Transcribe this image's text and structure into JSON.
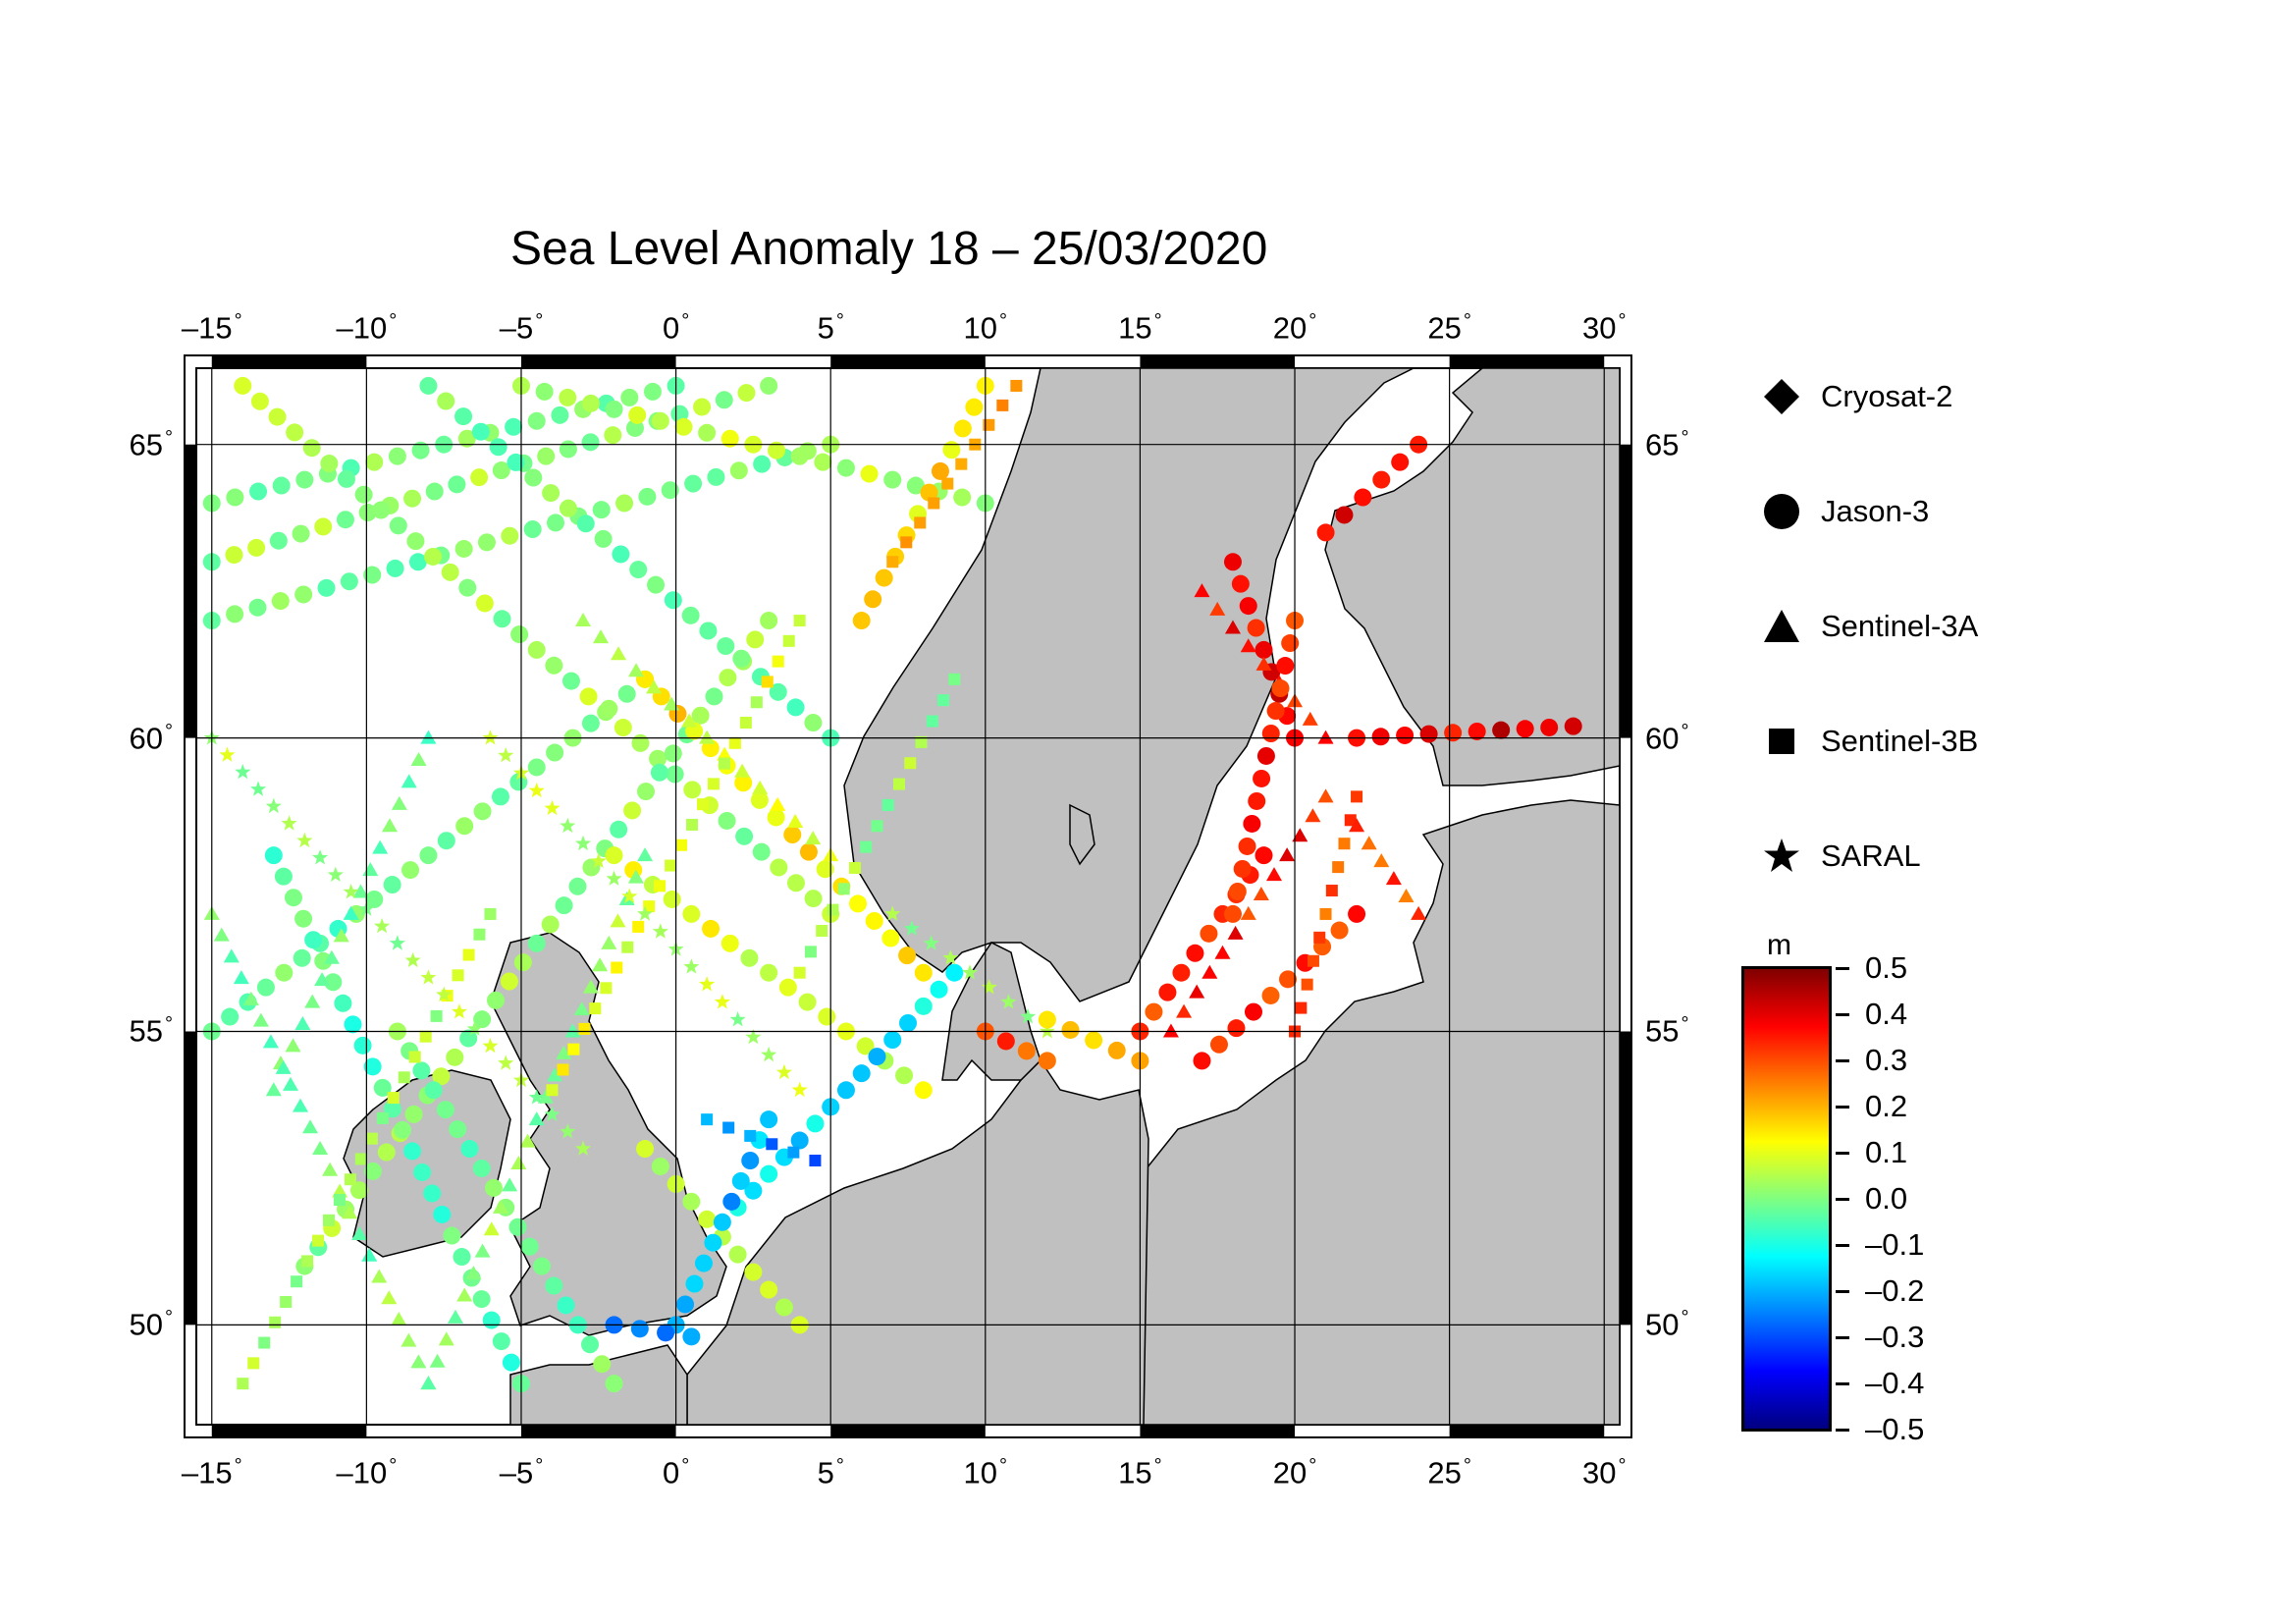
{
  "title": "Sea Level Anomaly 18 – 25/03/2020",
  "map": {
    "lon_range": [
      -15.5,
      30.5
    ],
    "lat_range": [
      48.3,
      66.3
    ],
    "lon_ticks": [
      {
        "value": -15,
        "label": "–15"
      },
      {
        "value": -10,
        "label": "–10"
      },
      {
        "value": -5,
        "label": "–5"
      },
      {
        "value": 0,
        "label": "0"
      },
      {
        "value": 5,
        "label": "5"
      },
      {
        "value": 10,
        "label": "10"
      },
      {
        "value": 15,
        "label": "15"
      },
      {
        "value": 20,
        "label": "20"
      },
      {
        "value": 25,
        "label": "25"
      },
      {
        "value": 30,
        "label": "30"
      }
    ],
    "lat_ticks": [
      {
        "value": 50,
        "label": "50"
      },
      {
        "value": 55,
        "label": "55"
      },
      {
        "value": 60,
        "label": "60"
      },
      {
        "value": 65,
        "label": "65"
      }
    ],
    "land_color": "#c0c0c0",
    "sea_color": "#ffffff",
    "grid": true
  },
  "legend": {
    "items": [
      {
        "label": "Cryosat-2",
        "symbol": "diamond"
      },
      {
        "label": "Jason-3",
        "symbol": "circle"
      },
      {
        "label": "Sentinel-3A",
        "symbol": "triangle"
      },
      {
        "label": "Sentinel-3B",
        "symbol": "square"
      },
      {
        "label": "SARAL",
        "symbol": "star"
      }
    ]
  },
  "colorbar": {
    "unit": "m",
    "min": -0.5,
    "max": 0.5,
    "ticks": [
      "0.5",
      "0.4",
      "0.3",
      "0.2",
      "0.1",
      "0.0",
      "–0.1",
      "–0.2",
      "–0.3",
      "–0.4",
      "–0.5"
    ],
    "colors": [
      "#800000",
      "#ff0000",
      "#ff8000",
      "#ffff00",
      "#80ff80",
      "#00ffff",
      "#0080ff",
      "#0000ff",
      "#000080"
    ]
  },
  "tracks": [
    {
      "sat": "circle",
      "from": [
        -15,
        64
      ],
      "to": [
        0,
        66
      ],
      "value": 0.0
    },
    {
      "sat": "circle",
      "from": [
        -15,
        63
      ],
      "to": [
        3,
        66
      ],
      "value": 0.02
    },
    {
      "sat": "circle",
      "from": [
        -15,
        62
      ],
      "to": [
        5,
        65
      ],
      "value": 0.0
    },
    {
      "sat": "circle",
      "from": [
        -14,
        66
      ],
      "to": [
        5,
        57
      ],
      "value": 0.03
    },
    {
      "sat": "circle",
      "from": [
        -8,
        66
      ],
      "to": [
        5,
        60
      ],
      "value": 0.0
    },
    {
      "sat": "circle",
      "from": [
        -5,
        66
      ],
      "to": [
        10,
        64
      ],
      "value": 0.06
    },
    {
      "sat": "circle",
      "from": [
        -15,
        55
      ],
      "to": [
        -1,
        61
      ],
      "value": -0.03
    },
    {
      "sat": "circle",
      "from": [
        -12,
        51
      ],
      "to": [
        3,
        62
      ],
      "value": 0.02
    },
    {
      "sat": "circle",
      "from": [
        -2,
        58
      ],
      "to": [
        8,
        54
      ],
      "value": 0.1
    },
    {
      "sat": "circle",
      "from": [
        -1,
        61
      ],
      "to": [
        8,
        56
      ],
      "value": 0.15
    },
    {
      "sat": "circle",
      "from": [
        -13,
        58
      ],
      "to": [
        -5,
        49
      ],
      "value": -0.05
    },
    {
      "sat": "circle",
      "from": [
        -9,
        55
      ],
      "to": [
        -2,
        49
      ],
      "value": -0.02
    },
    {
      "sat": "circle",
      "from": [
        2,
        52
      ],
      "to": [
        9,
        56
      ],
      "value": -0.15
    },
    {
      "sat": "circle",
      "from": [
        -1,
        53
      ],
      "to": [
        4,
        50
      ],
      "value": 0.08
    },
    {
      "sat": "triangle",
      "from": [
        -15,
        57
      ],
      "to": [
        -8,
        49
      ],
      "value": 0.0
    },
    {
      "sat": "triangle",
      "from": [
        -8,
        49
      ],
      "to": [
        -1,
        58
      ],
      "value": 0.02
    },
    {
      "sat": "triangle",
      "from": [
        -3,
        62
      ],
      "to": [
        5,
        58
      ],
      "value": 0.08
    },
    {
      "sat": "triangle",
      "from": [
        -13,
        54
      ],
      "to": [
        -8,
        60
      ],
      "value": -0.02
    },
    {
      "sat": "square",
      "from": [
        -14,
        49
      ],
      "to": [
        -6,
        57
      ],
      "value": 0.05
    },
    {
      "sat": "square",
      "from": [
        -4,
        54
      ],
      "to": [
        4,
        62
      ],
      "value": 0.1
    },
    {
      "sat": "square",
      "from": [
        4,
        56
      ],
      "to": [
        9,
        61
      ],
      "value": 0.03
    },
    {
      "sat": "star",
      "from": [
        -15,
        60
      ],
      "to": [
        -3,
        53
      ],
      "value": 0.04
    },
    {
      "sat": "star",
      "from": [
        -6,
        60
      ],
      "to": [
        4,
        54
      ],
      "value": 0.05
    },
    {
      "sat": "star",
      "from": [
        7,
        57
      ],
      "to": [
        12,
        55
      ],
      "value": 0.02
    },
    {
      "sat": "circle",
      "from": [
        6,
        62
      ],
      "to": [
        10,
        66
      ],
      "value": 0.15
    },
    {
      "sat": "square",
      "from": [
        7,
        63
      ],
      "to": [
        11,
        66
      ],
      "value": 0.25
    },
    {
      "sat": "circle",
      "from": [
        21,
        63.5
      ],
      "to": [
        24,
        65
      ],
      "value": 0.4
    },
    {
      "sat": "circle",
      "from": [
        18,
        63
      ],
      "to": [
        20,
        60
      ],
      "value": 0.38
    },
    {
      "sat": "triangle",
      "from": [
        17,
        62.5
      ],
      "to": [
        21,
        60
      ],
      "value": 0.36
    },
    {
      "sat": "circle",
      "from": [
        15,
        55
      ],
      "to": [
        19,
        58
      ],
      "value": 0.32
    },
    {
      "sat": "triangle",
      "from": [
        16,
        55
      ],
      "to": [
        21,
        59
      ],
      "value": 0.35
    },
    {
      "sat": "circle",
      "from": [
        17,
        54.5
      ],
      "to": [
        22,
        57
      ],
      "value": 0.33
    },
    {
      "sat": "square",
      "from": [
        20,
        55
      ],
      "to": [
        22,
        59
      ],
      "value": 0.3
    },
    {
      "sat": "circle",
      "from": [
        20,
        62
      ],
      "to": [
        18,
        57
      ],
      "value": 0.35
    },
    {
      "sat": "circle",
      "from": [
        22,
        60
      ],
      "to": [
        29,
        60.2
      ],
      "value": 0.4
    },
    {
      "sat": "triangle",
      "from": [
        22,
        58.5
      ],
      "to": [
        24,
        57
      ],
      "value": 0.3
    },
    {
      "sat": "circle",
      "from": [
        12,
        55.2
      ],
      "to": [
        15,
        54.5
      ],
      "value": 0.2
    },
    {
      "sat": "circle",
      "from": [
        10,
        55
      ],
      "to": [
        12,
        54.5
      ],
      "value": 0.3
    },
    {
      "sat": "circle",
      "from": [
        0,
        50
      ],
      "to": [
        3,
        53.5
      ],
      "value": -0.2
    },
    {
      "sat": "square",
      "from": [
        1,
        53.5
      ],
      "to": [
        4.5,
        52.8
      ],
      "value": -0.25
    },
    {
      "sat": "circle",
      "from": [
        -2,
        50
      ],
      "to": [
        0.5,
        49.8
      ],
      "value": -0.25
    }
  ]
}
